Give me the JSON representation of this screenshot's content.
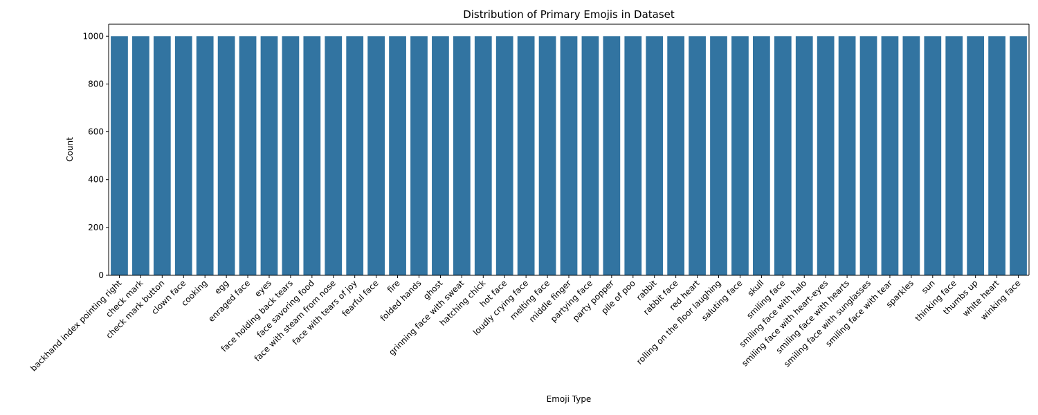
{
  "chart_data": {
    "type": "bar",
    "title": "Distribution of Primary Emojis in Dataset",
    "xlabel": "Emoji Type",
    "ylabel": "Count",
    "ylim": [
      0,
      1050
    ],
    "yticks": [
      0,
      200,
      400,
      600,
      800,
      1000
    ],
    "grid": false,
    "bar_color": "#3274a1",
    "categories": [
      "backhand index pointing right",
      "check mark",
      "check mark button",
      "clown face",
      "cooking",
      "egg",
      "enraged face",
      "eyes",
      "face holding back tears",
      "face savoring food",
      "face with steam from nose",
      "face with tears of joy",
      "fearful face",
      "fire",
      "folded hands",
      "ghost",
      "grinning face with sweat",
      "hatching chick",
      "hot face",
      "loudly crying face",
      "melting face",
      "middle finger",
      "partying face",
      "party popper",
      "pile of poo",
      "rabbit",
      "rabbit face",
      "red heart",
      "rolling on the floor laughing",
      "saluting face",
      "skull",
      "smiling face",
      "smiling face with halo",
      "smiling face with heart-eyes",
      "smiling face with hearts",
      "smiling face with sunglasses",
      "smiling face with tear",
      "sparkles",
      "sun",
      "thinking face",
      "thumbs up",
      "white heart",
      "winking face"
    ],
    "values": [
      1000,
      1000,
      1000,
      1000,
      1000,
      1000,
      1000,
      1000,
      1000,
      1000,
      1000,
      1000,
      1000,
      1000,
      1000,
      1000,
      1000,
      1000,
      1000,
      1000,
      1000,
      1000,
      1000,
      1000,
      1000,
      1000,
      1000,
      1000,
      1000,
      1000,
      1000,
      1000,
      1000,
      1000,
      1000,
      1000,
      1000,
      1000,
      1000,
      1000,
      1000,
      1000,
      1000
    ]
  }
}
